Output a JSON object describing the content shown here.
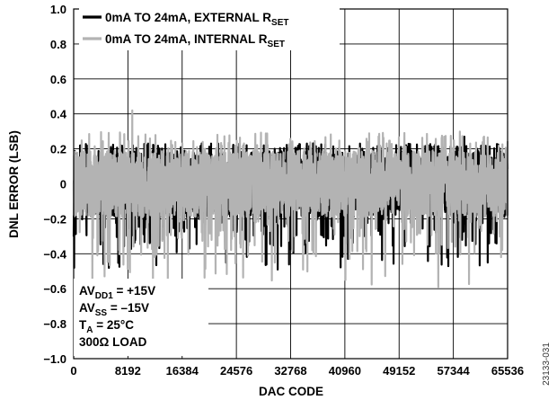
{
  "chart_data": {
    "type": "line",
    "xlabel": "DAC CODE",
    "ylabel": "DNL ERROR (LSB)",
    "xlim": [
      0,
      65536
    ],
    "ylim": [
      -1.0,
      1.0
    ],
    "x_ticks": [
      0,
      8192,
      16384,
      24576,
      32768,
      40960,
      49152,
      57344,
      65536
    ],
    "x_tick_labels": [
      "0",
      "8192",
      "16384",
      "24576",
      "32768",
      "40960",
      "49152",
      "57344",
      "65536"
    ],
    "y_ticks": [
      1.0,
      0.8,
      0.6,
      0.4,
      0.2,
      0,
      -0.2,
      -0.4,
      -0.6,
      -0.8,
      -1.0
    ],
    "y_tick_labels": [
      "1.0",
      "0.8",
      "0.6",
      "0.4",
      "0.2",
      "0",
      "−0.2",
      "−0.4",
      "−0.6",
      "−0.8",
      "−1.0"
    ],
    "grid": true,
    "legend_position": "top-left",
    "series": [
      {
        "legend_main": "0mA TO 24mA, EXTERNAL R",
        "legend_sub": "SET",
        "color": "#000000",
        "band_upper": 0.2,
        "band_lower": -0.2,
        "peak_max": 0.27,
        "peak_min": -0.49
      },
      {
        "legend_main": "0mA TO 24mA, INTERNAL R",
        "legend_sub": "SET",
        "color": "#b3b3b3",
        "band_upper": 0.2,
        "band_lower": -0.2,
        "peak_max": 0.42,
        "peak_min": -0.59
      }
    ],
    "conditions": [
      {
        "main": "AV",
        "sub": "DD1",
        "rest": " = +15V"
      },
      {
        "main": "AV",
        "sub": "SS",
        "rest": " = –15V"
      },
      {
        "main": "T",
        "sub": "A",
        "rest": " = 25°C"
      },
      {
        "main": "300Ω LOAD",
        "sub": "",
        "rest": ""
      }
    ]
  },
  "figure_id": "23133-031"
}
